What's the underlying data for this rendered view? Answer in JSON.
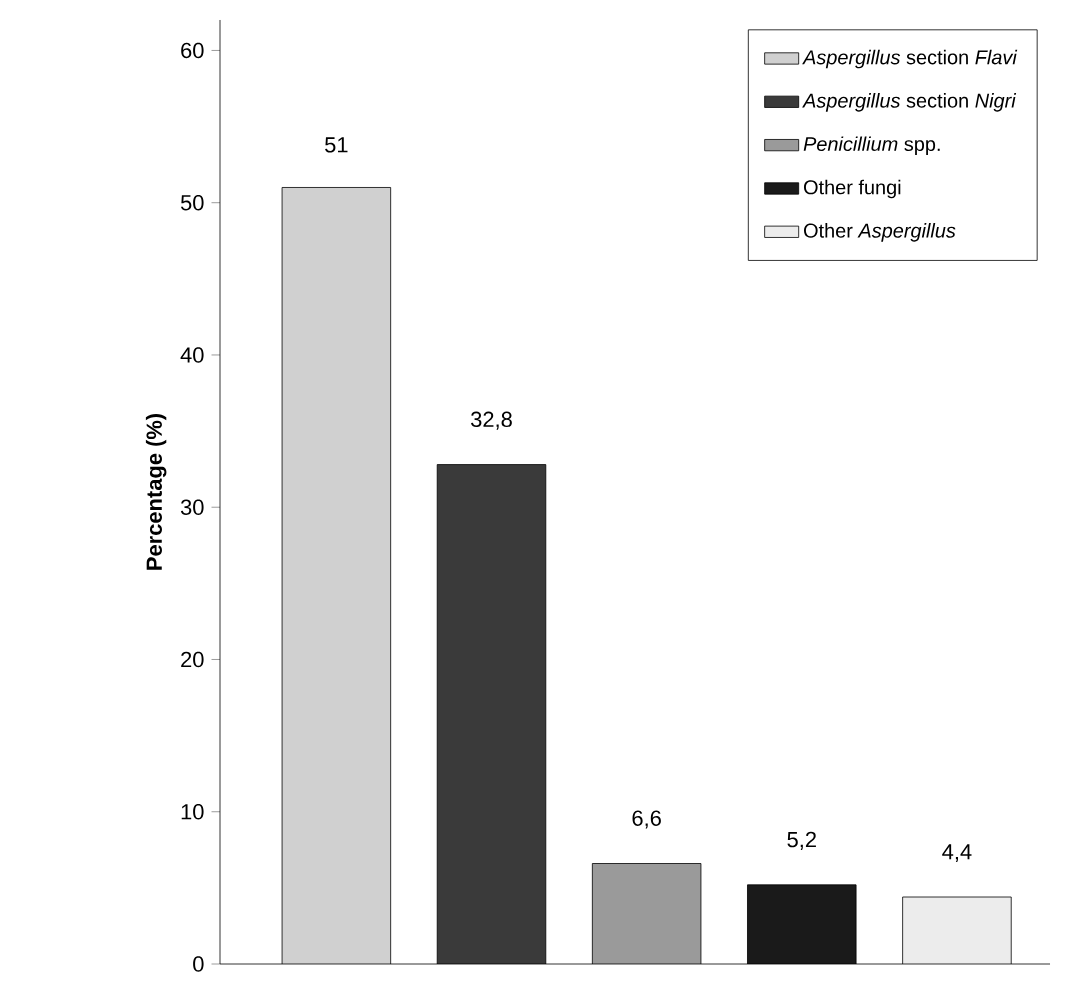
{
  "chart_data": {
    "type": "bar",
    "ylabel": "Percentage (%)",
    "categories": [
      null,
      null,
      null,
      null,
      null
    ],
    "series": [
      {
        "name": "*Aspergillus* section *Flavi*",
        "color": "#d0d0d0",
        "values": [
          51,
          null,
          null,
          null,
          null
        ],
        "value_labels": [
          "51",
          null,
          null,
          null,
          null
        ]
      },
      {
        "name": "*Aspergillus* section *Nigri*",
        "color": "#3a3a3a",
        "values": [
          null,
          32.8,
          null,
          null,
          null
        ],
        "value_labels": [
          null,
          "32,8",
          null,
          null,
          null
        ]
      },
      {
        "name": "*Penicillium* spp.",
        "color": "#9a9a9a",
        "values": [
          null,
          null,
          6.6,
          null,
          null
        ],
        "value_labels": [
          null,
          null,
          "6,6",
          null,
          null
        ]
      },
      {
        "name": "Other fungi",
        "color": "#1a1a1a",
        "values": [
          null,
          null,
          null,
          5.2,
          null
        ],
        "value_labels": [
          null,
          null,
          null,
          "5,2",
          null
        ]
      },
      {
        "name": "Other *Aspergillus*",
        "color": "#ececec",
        "values": [
          null,
          null,
          null,
          null,
          4.4
        ],
        "value_labels": [
          null,
          null,
          null,
          null,
          "4,4"
        ]
      }
    ],
    "ylim": [
      0,
      62
    ],
    "yticks": [
      0,
      10,
      20,
      30,
      40,
      50,
      60
    ],
    "legend": "top right"
  }
}
